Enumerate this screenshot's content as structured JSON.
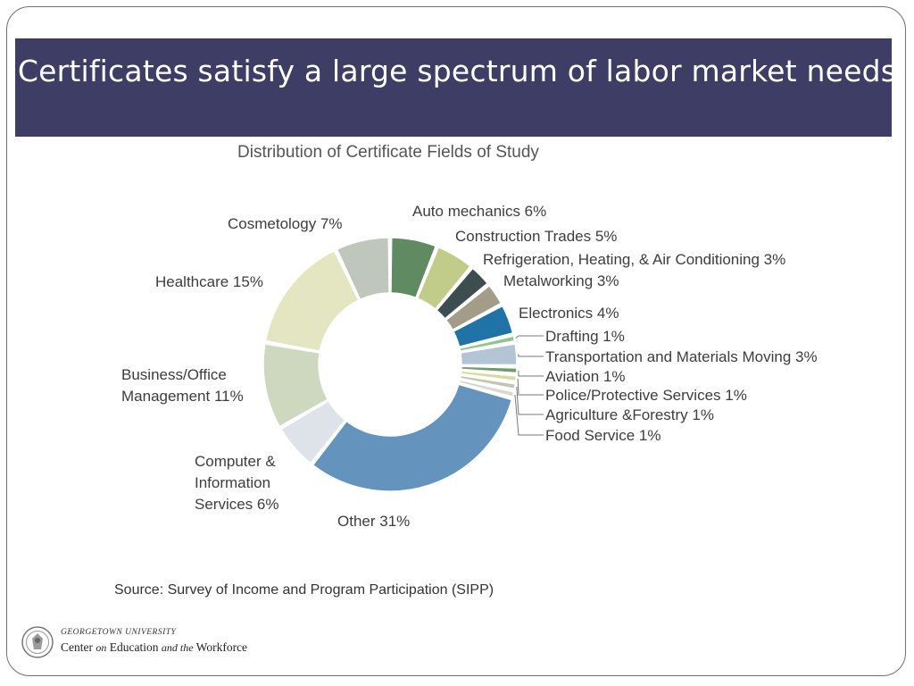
{
  "slide": {
    "title": "Certificates satisfy a large spectrum of labor market needs",
    "source": "Source: Survey of Income and Program Participation (SIPP)"
  },
  "logo": {
    "line1": "GEORGETOWN UNIVERSITY",
    "center": "Center",
    "on": "on",
    "education": "Education",
    "and_the": "and the",
    "workforce": "Workforce"
  },
  "chart_data": {
    "type": "pie",
    "title": "Distribution of Certificate Fields of Study",
    "slices": [
      {
        "label": "Auto mechanics 6%",
        "value": 6,
        "color": "#5f8a62"
      },
      {
        "label": "Construction Trades 5%",
        "value": 5,
        "color": "#c2cc8a"
      },
      {
        "label": "Refrigeration, Heating, & Air Conditioning 3%",
        "value": 3,
        "color": "#3e4d4f"
      },
      {
        "label": "Metalworking 3%",
        "value": 3,
        "color": "#a39c88"
      },
      {
        "label": "Electronics 4%",
        "value": 4,
        "color": "#1f73a6"
      },
      {
        "label": "Drafting 1%",
        "value": 1,
        "color": "#8fc48f"
      },
      {
        "label": "Transportation and Materials Moving 3%",
        "value": 3,
        "color": "#b3c4d4"
      },
      {
        "label": "Aviation 1%",
        "value": 1,
        "color": "#6f9a6a"
      },
      {
        "label": "Police/Protective Services 1%",
        "value": 1,
        "color": "#d6dd9e"
      },
      {
        "label": "Agriculture &Forestry 1%",
        "value": 1,
        "color": "#bcc9b0"
      },
      {
        "label": "Food Service 1%",
        "value": 1,
        "color": "#d9d9cf"
      },
      {
        "label": "Other 31%",
        "value": 31,
        "color": "#6493bd"
      },
      {
        "label": "Computer & Information Services 6%",
        "value": 6,
        "color": "#dde3e8"
      },
      {
        "label": "Business/Office Management 11%",
        "value": 11,
        "color": "#cdd8bf"
      },
      {
        "label": "Healthcare 15%",
        "value": 15,
        "color": "#e4e6c2"
      },
      {
        "label": "Cosmetology 7%",
        "value": 7,
        "color": "#bfc6bc"
      }
    ]
  }
}
